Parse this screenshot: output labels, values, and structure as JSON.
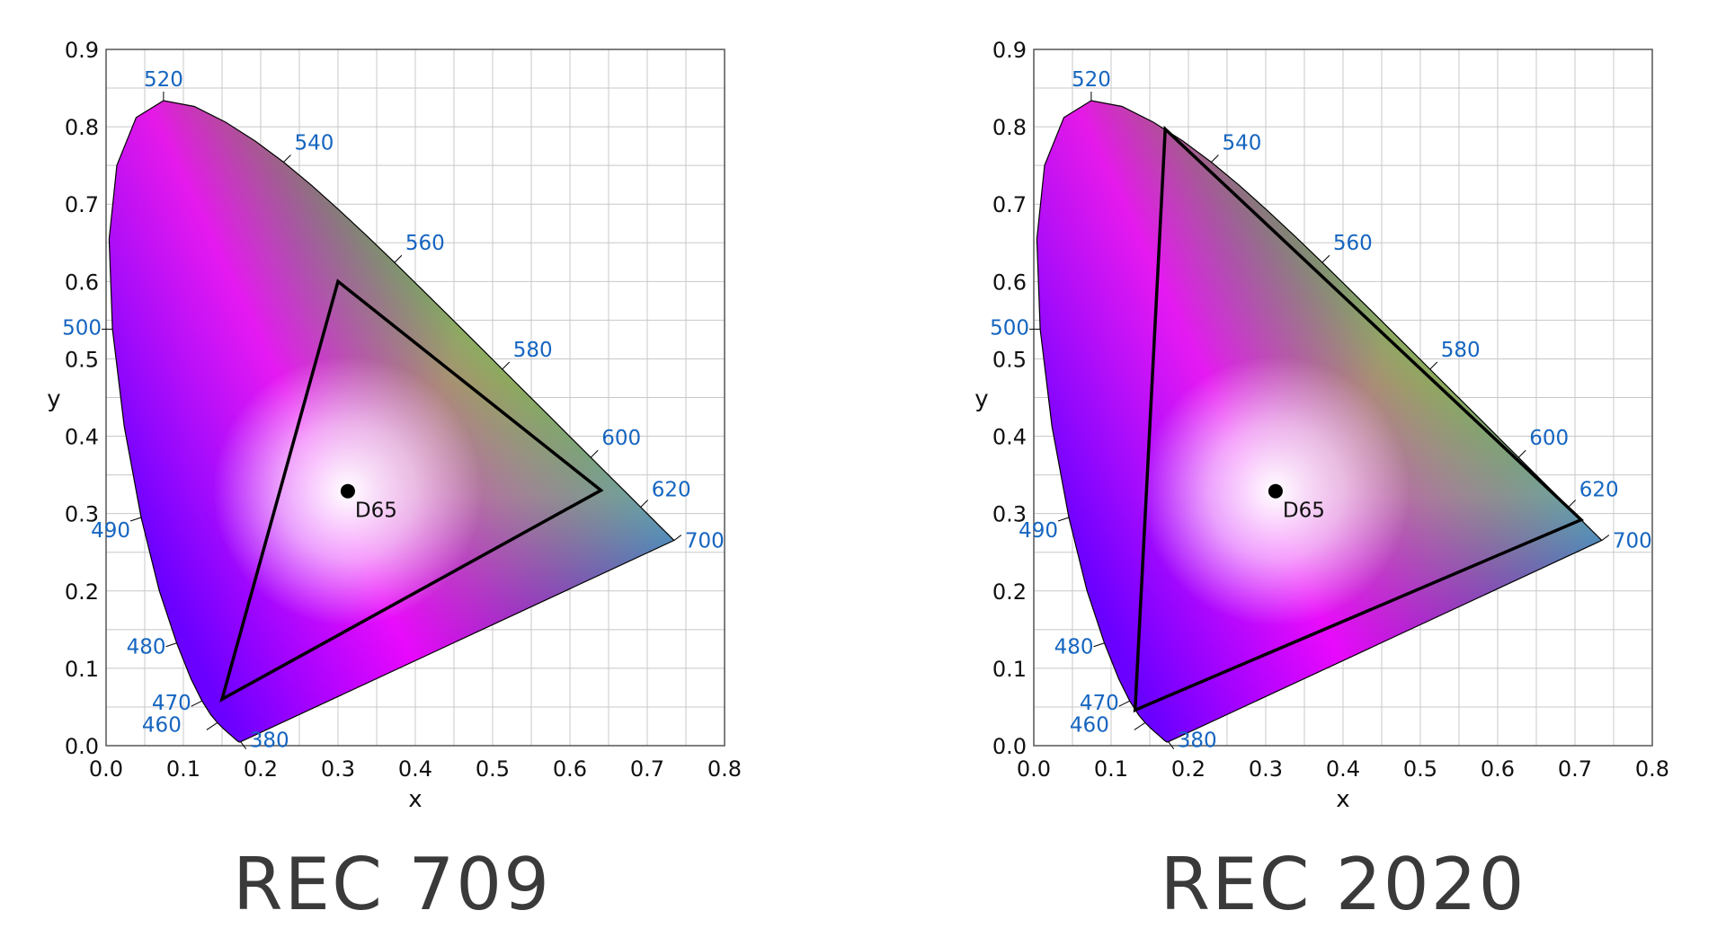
{
  "chart_data": [
    {
      "type": "scatter",
      "title": "",
      "caption": "REC 709",
      "xlabel": "x",
      "ylabel": "y",
      "xlim": [
        0.0,
        0.8
      ],
      "ylim": [
        0.0,
        0.9
      ],
      "x_ticks": [
        "0.0",
        "0.1",
        "0.2",
        "0.3",
        "0.4",
        "0.5",
        "0.6",
        "0.7",
        "0.8"
      ],
      "y_ticks": [
        "0.0",
        "0.1",
        "0.2",
        "0.3",
        "0.4",
        "0.5",
        "0.6",
        "0.7",
        "0.8",
        "0.9"
      ],
      "grid": true,
      "gamut_triangle": [
        [
          0.64,
          0.33
        ],
        [
          0.3,
          0.6
        ],
        [
          0.15,
          0.06
        ]
      ],
      "white_point": {
        "label": "D65",
        "x": 0.3127,
        "y": 0.329
      },
      "wavelength_labels": [
        {
          "label": "380",
          "x": 0.1741,
          "y": 0.005
        },
        {
          "label": "460",
          "x": 0.144,
          "y": 0.0297
        },
        {
          "label": "470",
          "x": 0.1241,
          "y": 0.0578
        },
        {
          "label": "480",
          "x": 0.0913,
          "y": 0.1327
        },
        {
          "label": "490",
          "x": 0.0454,
          "y": 0.295
        },
        {
          "label": "500",
          "x": 0.0082,
          "y": 0.5384
        },
        {
          "label": "520",
          "x": 0.0743,
          "y": 0.8338
        },
        {
          "label": "540",
          "x": 0.2296,
          "y": 0.7543
        },
        {
          "label": "560",
          "x": 0.3731,
          "y": 0.6245
        },
        {
          "label": "580",
          "x": 0.5125,
          "y": 0.4866
        },
        {
          "label": "600",
          "x": 0.627,
          "y": 0.3725
        },
        {
          "label": "620",
          "x": 0.6915,
          "y": 0.3083
        },
        {
          "label": "700",
          "x": 0.7347,
          "y": 0.2653
        }
      ]
    },
    {
      "type": "scatter",
      "title": "",
      "caption": "REC 2020",
      "xlabel": "x",
      "ylabel": "y",
      "xlim": [
        0.0,
        0.8
      ],
      "ylim": [
        0.0,
        0.9
      ],
      "x_ticks": [
        "0.0",
        "0.1",
        "0.2",
        "0.3",
        "0.4",
        "0.5",
        "0.6",
        "0.7",
        "0.8"
      ],
      "y_ticks": [
        "0.0",
        "0.1",
        "0.2",
        "0.3",
        "0.4",
        "0.5",
        "0.6",
        "0.7",
        "0.8",
        "0.9"
      ],
      "grid": true,
      "gamut_triangle": [
        [
          0.708,
          0.292
        ],
        [
          0.17,
          0.797
        ],
        [
          0.131,
          0.046
        ]
      ],
      "white_point": {
        "label": "D65",
        "x": 0.3127,
        "y": 0.329
      },
      "wavelength_labels": [
        {
          "label": "380",
          "x": 0.1741,
          "y": 0.005
        },
        {
          "label": "460",
          "x": 0.144,
          "y": 0.0297
        },
        {
          "label": "470",
          "x": 0.1241,
          "y": 0.0578
        },
        {
          "label": "480",
          "x": 0.0913,
          "y": 0.1327
        },
        {
          "label": "490",
          "x": 0.0454,
          "y": 0.295
        },
        {
          "label": "500",
          "x": 0.0082,
          "y": 0.5384
        },
        {
          "label": "520",
          "x": 0.0743,
          "y": 0.8338
        },
        {
          "label": "540",
          "x": 0.2296,
          "y": 0.7543
        },
        {
          "label": "560",
          "x": 0.3731,
          "y": 0.6245
        },
        {
          "label": "580",
          "x": 0.5125,
          "y": 0.4866
        },
        {
          "label": "600",
          "x": 0.627,
          "y": 0.3725
        },
        {
          "label": "620",
          "x": 0.6915,
          "y": 0.3083
        },
        {
          "label": "700",
          "x": 0.7347,
          "y": 0.2653
        }
      ]
    }
  ],
  "colors": {
    "wavelength_label": "#1565c0",
    "gamut_outline": "#000000",
    "grid": "#c8c8c8",
    "caption": "#3a3a3a"
  },
  "icons": {
    "white_point_marker": "filled-circle"
  }
}
